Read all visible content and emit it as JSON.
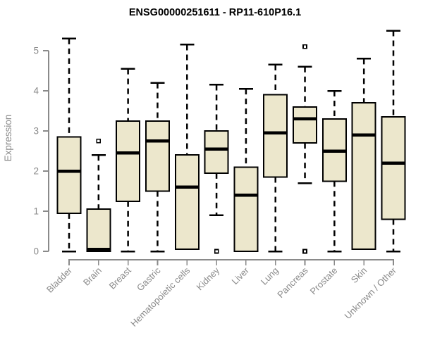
{
  "chart_data": {
    "type": "boxplot",
    "title": "ENSG00000251611 - RP11-610P16.1",
    "ylabel": "Expression",
    "xlabel": "",
    "ylim": [
      0,
      5.6
    ],
    "yticks": [
      0,
      1,
      2,
      3,
      4,
      5
    ],
    "grid": false,
    "legend": false,
    "categories": [
      "Bladder",
      "Brain",
      "Breast",
      "Gastric",
      "Hematopoietic cells",
      "Kidney",
      "Liver",
      "Lung",
      "Pancreas",
      "Prostate",
      "Skin",
      "Unknown / Other"
    ],
    "boxes": [
      {
        "category": "Bladder",
        "whisker_low": 0,
        "q1": 0.95,
        "median": 2.0,
        "q3": 2.85,
        "whisker_high": 5.3,
        "outliers": []
      },
      {
        "category": "Brain",
        "whisker_low": 0,
        "q1": 0,
        "median": 0.05,
        "q3": 1.05,
        "whisker_high": 2.4,
        "outliers": [
          2.75
        ]
      },
      {
        "category": "Breast",
        "whisker_low": 0,
        "q1": 1.25,
        "median": 2.45,
        "q3": 3.25,
        "whisker_high": 4.55,
        "outliers": []
      },
      {
        "category": "Gastric",
        "whisker_low": 0,
        "q1": 1.5,
        "median": 2.75,
        "q3": 3.25,
        "whisker_high": 4.2,
        "outliers": []
      },
      {
        "category": "Hematopoietic cells",
        "whisker_low": 0.05,
        "q1": 0.05,
        "median": 1.6,
        "q3": 2.4,
        "whisker_high": 5.15,
        "outliers": []
      },
      {
        "category": "Kidney",
        "whisker_low": 0.9,
        "q1": 1.95,
        "median": 2.55,
        "q3": 3.0,
        "whisker_high": 4.15,
        "outliers": [
          0
        ]
      },
      {
        "category": "Liver",
        "whisker_low": 0,
        "q1": 0,
        "median": 1.4,
        "q3": 2.1,
        "whisker_high": 4.05,
        "outliers": []
      },
      {
        "category": "Lung",
        "whisker_low": 0,
        "q1": 1.85,
        "median": 2.95,
        "q3": 3.9,
        "whisker_high": 4.65,
        "outliers": []
      },
      {
        "category": "Pancreas",
        "whisker_low": 1.7,
        "q1": 2.7,
        "median": 3.3,
        "q3": 3.6,
        "whisker_high": 4.6,
        "outliers": [
          5.1,
          0
        ]
      },
      {
        "category": "Prostate",
        "whisker_low": 0,
        "q1": 1.75,
        "median": 2.5,
        "q3": 3.3,
        "whisker_high": 4.0,
        "outliers": []
      },
      {
        "category": "Skin",
        "whisker_low": 0.05,
        "q1": 0.05,
        "median": 2.9,
        "q3": 3.7,
        "whisker_high": 4.8,
        "outliers": []
      },
      {
        "category": "Unknown / Other",
        "whisker_low": 0,
        "q1": 0.8,
        "median": 2.2,
        "q3": 3.35,
        "whisker_high": 5.5,
        "outliers": []
      }
    ],
    "colors": {
      "box_fill": "#ECE7CC",
      "box_border": "#000000",
      "median": "#000000",
      "whisker": "#000000",
      "outlier": "#000000",
      "axis": "#8A8A8A",
      "tick_label": "#8A8A8A",
      "title": "#000000"
    }
  }
}
